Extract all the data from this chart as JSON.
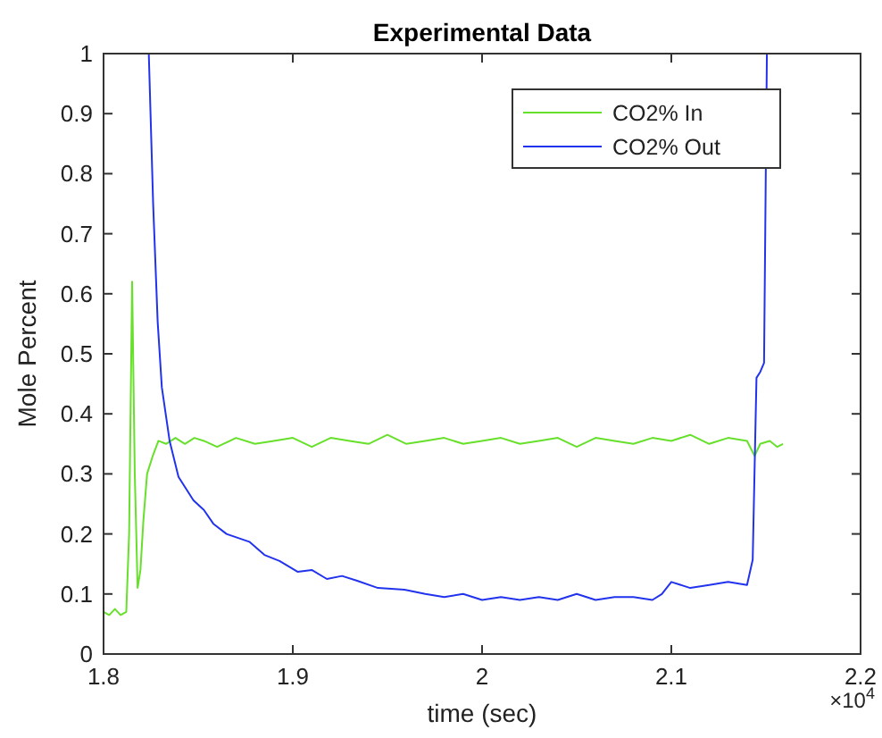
{
  "chart_data": {
    "type": "line",
    "title": "Experimental Data",
    "xlabel": "time (sec)",
    "ylabel": "Mole Percent",
    "annotations": [
      "×10$^{4}$"
    ],
    "xlim": [
      1.8,
      2.2
    ],
    "ylim": [
      0,
      1
    ],
    "xticks": [
      1.8,
      1.9,
      2,
      2.1,
      2.2
    ],
    "yticks": [
      0,
      0.1,
      0.2,
      0.3,
      0.4,
      0.5,
      0.6,
      0.7,
      0.8,
      0.9,
      1
    ],
    "grid": false,
    "legend": "top right",
    "line_style": "solid",
    "marker": "none",
    "series": [
      {
        "name": "CO2% In",
        "color": "#66e02a",
        "x": [
          1.8,
          1.803,
          1.806,
          1.809,
          1.812,
          1.8135,
          1.8151,
          1.8165,
          1.818,
          1.8195,
          1.821,
          1.823,
          1.826,
          1.829,
          1.833,
          1.838,
          1.843,
          1.848,
          1.853,
          1.86,
          1.87,
          1.88,
          1.89,
          1.9,
          1.91,
          1.92,
          1.93,
          1.94,
          1.95,
          1.96,
          1.97,
          1.98,
          1.99,
          2,
          2.01,
          2.02,
          2.03,
          2.04,
          2.05,
          2.06,
          2.07,
          2.08,
          2.09,
          2.1,
          2.11,
          2.12,
          2.13,
          2.14,
          2.144,
          2.147,
          2.152,
          2.156,
          2.159
        ],
        "values": [
          0.07,
          0.065,
          0.075,
          0.065,
          0.07,
          0.2,
          0.62,
          0.3,
          0.11,
          0.14,
          0.22,
          0.3,
          0.33,
          0.355,
          0.35,
          0.36,
          0.35,
          0.36,
          0.355,
          0.345,
          0.36,
          0.35,
          0.355,
          0.36,
          0.345,
          0.36,
          0.355,
          0.35,
          0.365,
          0.35,
          0.355,
          0.36,
          0.35,
          0.355,
          0.36,
          0.35,
          0.355,
          0.36,
          0.345,
          0.36,
          0.355,
          0.35,
          0.36,
          0.355,
          0.365,
          0.35,
          0.36,
          0.355,
          0.33,
          0.35,
          0.355,
          0.345,
          0.35
        ]
      },
      {
        "name": "CO2% Out",
        "color": "#2233ee",
        "x": [
          1.8239,
          1.8262,
          1.8286,
          1.8308,
          1.8349,
          1.8396,
          1.8475,
          1.853,
          1.858,
          1.865,
          1.877,
          1.885,
          1.893,
          1.9025,
          1.91,
          1.918,
          1.926,
          1.934,
          1.945,
          1.959,
          1.97,
          1.98,
          1.99,
          2,
          2.01,
          2.02,
          2.03,
          2.04,
          2.05,
          2.06,
          2.07,
          2.08,
          2.09,
          2.095,
          2.1,
          2.11,
          2.12,
          2.13,
          2.14,
          2.143,
          2.145,
          2.147,
          2.149,
          2.1505
        ],
        "values": [
          1,
          0.75,
          0.553,
          0.444,
          0.355,
          0.295,
          0.256,
          0.24,
          0.217,
          0.2,
          0.187,
          0.165,
          0.155,
          0.137,
          0.14,
          0.125,
          0.13,
          0.122,
          0.11,
          0.107,
          0.1,
          0.095,
          0.1,
          0.09,
          0.095,
          0.09,
          0.095,
          0.09,
          0.1,
          0.09,
          0.095,
          0.095,
          0.09,
          0.1,
          0.12,
          0.11,
          0.115,
          0.12,
          0.115,
          0.157,
          0.46,
          0.47,
          0.485,
          1
        ]
      }
    ]
  }
}
